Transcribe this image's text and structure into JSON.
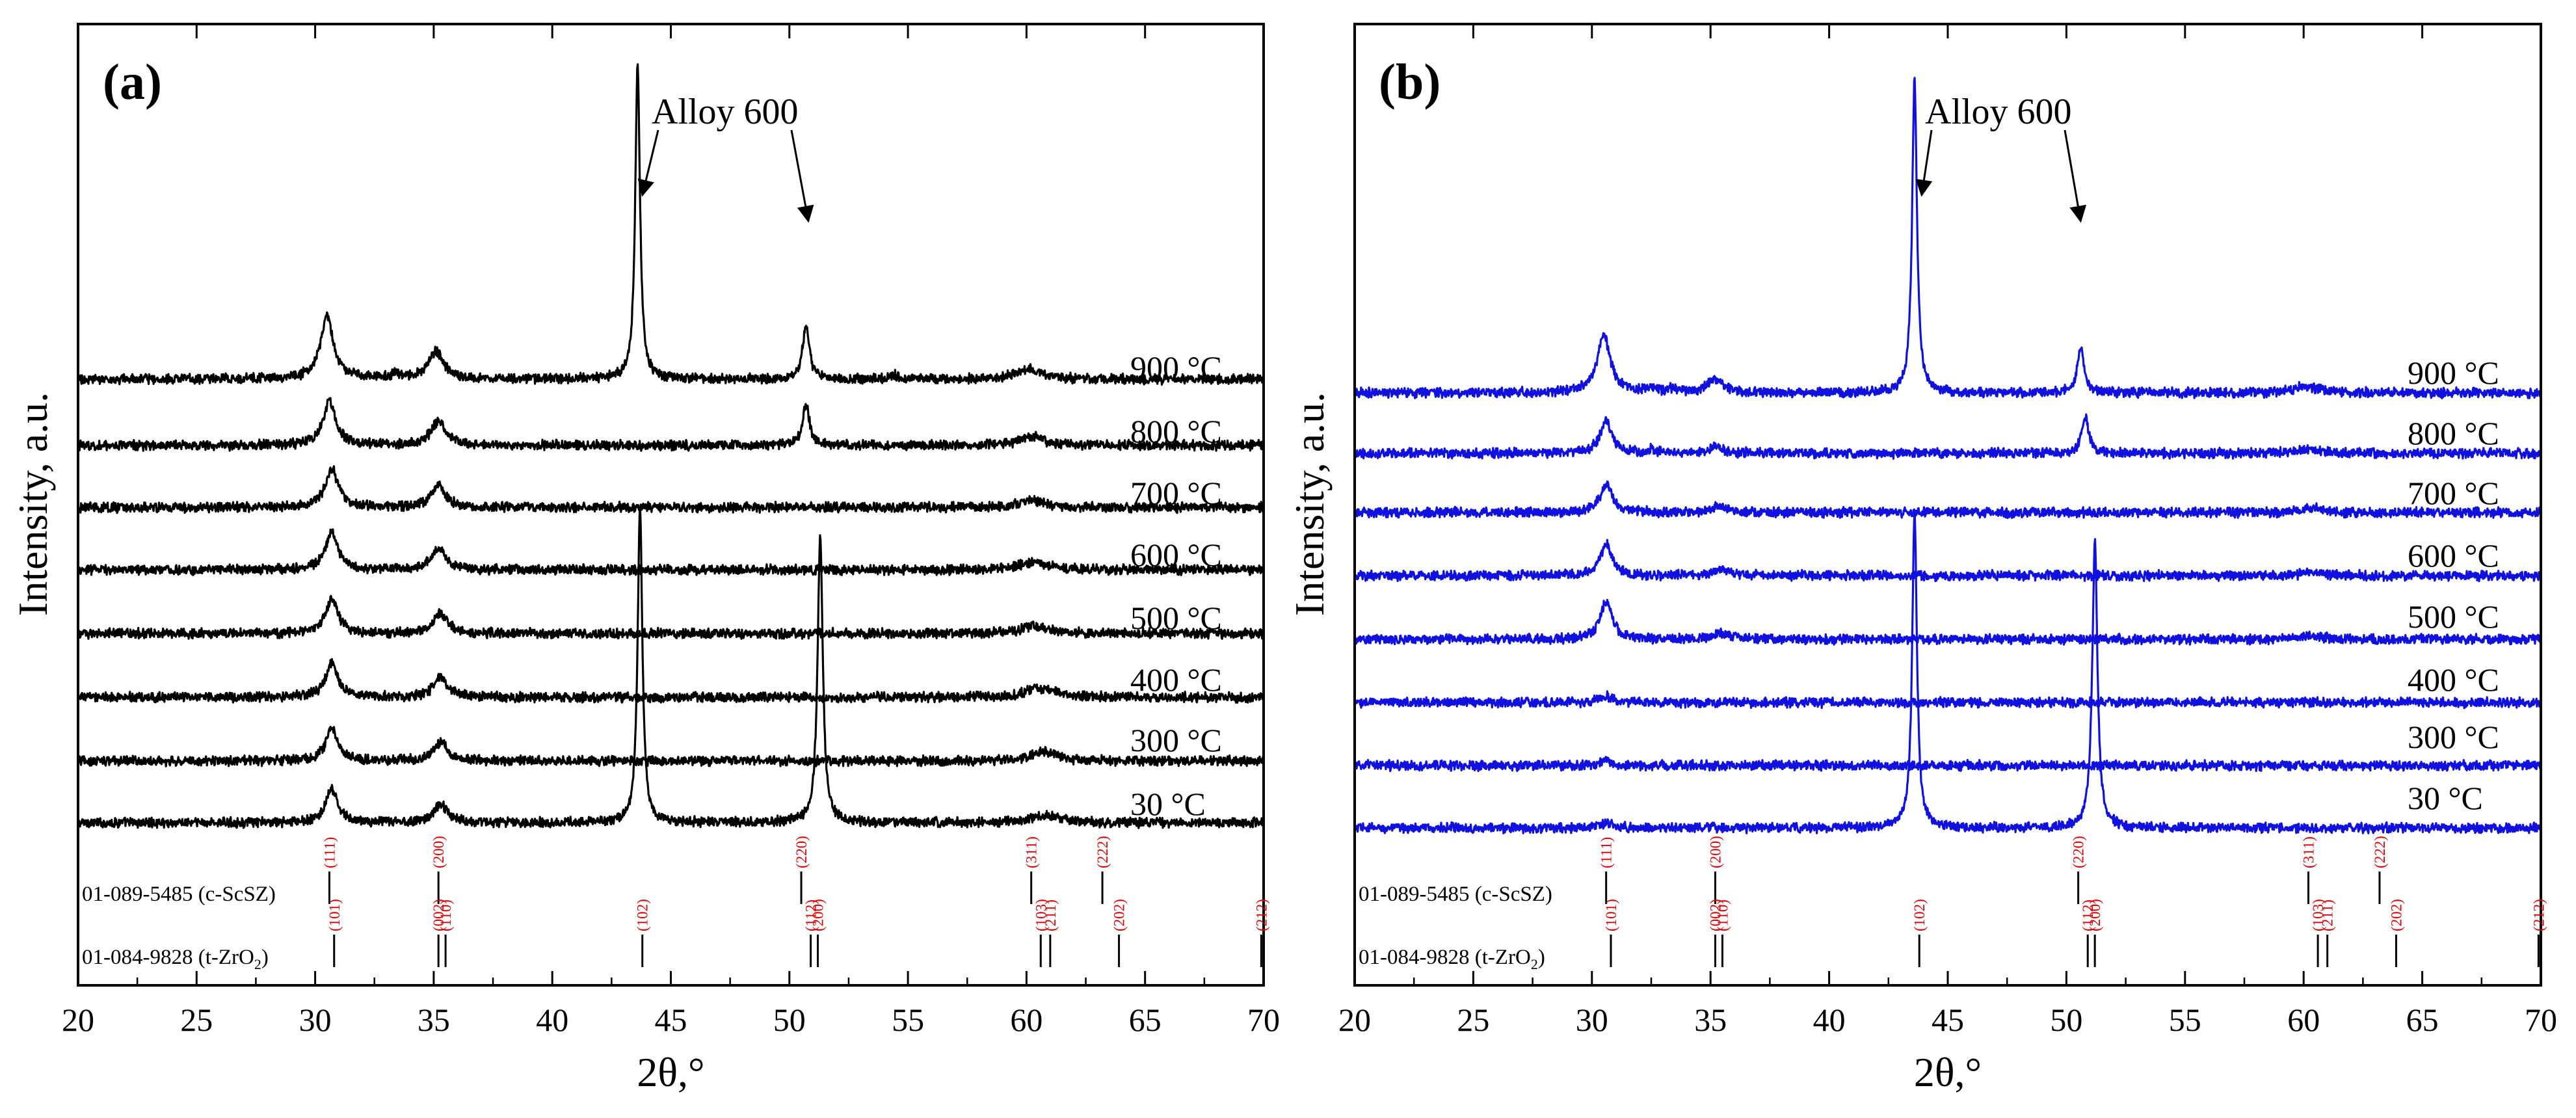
{
  "chart_data": [
    {
      "type": "line",
      "panel": "(a)",
      "color": "#000000",
      "xlabel": "2θ,°",
      "ylabel": "Intensity, a.u.",
      "xlim": [
        20,
        70
      ],
      "xticks": [
        20,
        25,
        30,
        35,
        40,
        45,
        50,
        55,
        60,
        65,
        70
      ],
      "annotation": "Alloy 600",
      "annotation_targets": [
        43.8,
        50.8
      ],
      "series": [
        {
          "name": "30 °C",
          "peaks": [
            [
              30.7,
              2.3,
              0.3
            ],
            [
              35.3,
              1.3,
              0.35
            ],
            [
              43.7,
              22.0,
              0.12
            ],
            [
              51.3,
              20.0,
              0.13
            ],
            [
              60.6,
              0.35,
              0.6
            ],
            [
              61.1,
              0.25,
              0.5
            ]
          ]
        },
        {
          "name": "300 °C",
          "peaks": [
            [
              30.7,
              2.3,
              0.3
            ],
            [
              35.3,
              1.3,
              0.35
            ],
            [
              60.6,
              0.45,
              0.6
            ],
            [
              61.0,
              0.3,
              0.5
            ]
          ]
        },
        {
          "name": "400 °C",
          "peaks": [
            [
              30.7,
              2.4,
              0.3
            ],
            [
              35.3,
              1.35,
              0.35
            ],
            [
              60.4,
              0.5,
              0.55
            ],
            [
              61.0,
              0.3,
              0.5
            ]
          ]
        },
        {
          "name": "500 °C",
          "peaks": [
            [
              30.7,
              2.5,
              0.3
            ],
            [
              35.3,
              1.4,
              0.35
            ],
            [
              60.3,
              0.55,
              0.65
            ]
          ]
        },
        {
          "name": "600 °C",
          "peaks": [
            [
              30.7,
              2.6,
              0.32
            ],
            [
              35.2,
              1.45,
              0.35
            ],
            [
              60.3,
              0.55,
              0.65
            ]
          ]
        },
        {
          "name": "700 °C",
          "peaks": [
            [
              30.7,
              2.7,
              0.32
            ],
            [
              35.2,
              1.5,
              0.36
            ],
            [
              60.2,
              0.5,
              0.6
            ]
          ]
        },
        {
          "name": "800 °C",
          "peaks": [
            [
              30.6,
              3.1,
              0.33
            ],
            [
              35.2,
              1.7,
              0.38
            ],
            [
              50.7,
              2.8,
              0.18
            ],
            [
              60.2,
              0.65,
              0.6
            ]
          ]
        },
        {
          "name": "900 °C",
          "peaks": [
            [
              30.5,
              4.4,
              0.33
            ],
            [
              33.4,
              0.35,
              0.2
            ],
            [
              35.1,
              1.9,
              0.38
            ],
            [
              43.6,
              22.0,
              0.12
            ],
            [
              50.7,
              3.7,
              0.17
            ],
            [
              54.4,
              0.3,
              0.2
            ],
            [
              60.1,
              0.75,
              0.6
            ]
          ]
        }
      ]
    },
    {
      "type": "line",
      "panel": "(b)",
      "color": "#1010e0",
      "xlabel": "2θ,°",
      "ylabel": "Intensity, a.u.",
      "xlim": [
        20,
        70
      ],
      "xticks": [
        20,
        25,
        30,
        35,
        40,
        45,
        50,
        55,
        60,
        65,
        70
      ],
      "annotation": "Alloy 600",
      "annotation_targets": [
        43.9,
        50.6
      ],
      "series": [
        {
          "name": "30 °C",
          "peaks": [
            [
              30.6,
              0.35,
              0.3
            ],
            [
              43.6,
              22.0,
              0.12
            ],
            [
              51.2,
              20.0,
              0.13
            ]
          ]
        },
        {
          "name": "300 °C",
          "peaks": [
            [
              30.6,
              0.35,
              0.3
            ]
          ]
        },
        {
          "name": "400 °C",
          "peaks": [
            [
              30.6,
              0.45,
              0.3
            ]
          ]
        },
        {
          "name": "500 °C",
          "peaks": [
            [
              30.6,
              2.6,
              0.3
            ],
            [
              35.5,
              0.45,
              0.4
            ],
            [
              60.4,
              0.25,
              0.5
            ]
          ]
        },
        {
          "name": "600 °C",
          "peaks": [
            [
              30.6,
              2.2,
              0.3
            ],
            [
              35.5,
              0.4,
              0.4
            ],
            [
              60.4,
              0.25,
              0.5
            ]
          ]
        },
        {
          "name": "700 °C",
          "peaks": [
            [
              30.6,
              2.0,
              0.3
            ],
            [
              35.4,
              0.45,
              0.4
            ],
            [
              60.4,
              0.3,
              0.5
            ]
          ]
        },
        {
          "name": "800 °C",
          "peaks": [
            [
              30.6,
              2.3,
              0.3
            ],
            [
              32.5,
              0.25,
              0.2
            ],
            [
              35.2,
              0.45,
              0.4
            ],
            [
              50.8,
              2.5,
              0.18
            ],
            [
              60.2,
              0.35,
              0.5
            ]
          ]
        },
        {
          "name": "900 °C",
          "peaks": [
            [
              30.5,
              4.0,
              0.33
            ],
            [
              32.5,
              0.3,
              0.2
            ],
            [
              33.3,
              0.3,
              0.2
            ],
            [
              35.2,
              0.95,
              0.4
            ],
            [
              43.6,
              22.0,
              0.12
            ],
            [
              50.6,
              3.2,
              0.17
            ],
            [
              60.1,
              0.5,
              0.55
            ]
          ]
        }
      ]
    }
  ],
  "reference_patterns": [
    {
      "name": "01-089-5485 (c-ScSZ)",
      "reflections": [
        {
          "two_theta": 30.6,
          "hkl": "(111)"
        },
        {
          "two_theta": 35.2,
          "hkl": "(200)"
        },
        {
          "two_theta": 50.5,
          "hkl": "(220)"
        },
        {
          "two_theta": 60.2,
          "hkl": "(311)"
        },
        {
          "two_theta": 63.2,
          "hkl": "(222)"
        }
      ]
    },
    {
      "name": "01-084-9828 (t-ZrO2)",
      "name_prefix": "01-084-9828 (t-ZrO",
      "name_sub": "2",
      "name_suffix": ")",
      "reflections": [
        {
          "two_theta": 30.8,
          "hkl": "(101)"
        },
        {
          "two_theta": 35.2,
          "hkl": "(002)"
        },
        {
          "two_theta": 35.5,
          "hkl": "(110)"
        },
        {
          "two_theta": 43.8,
          "hkl": "(102)"
        },
        {
          "two_theta": 50.9,
          "hkl": "(112)"
        },
        {
          "two_theta": 51.2,
          "hkl": "(200)"
        },
        {
          "two_theta": 60.6,
          "hkl": "(103)"
        },
        {
          "two_theta": 61.0,
          "hkl": "(211)"
        },
        {
          "two_theta": 63.9,
          "hkl": "(202)"
        },
        {
          "two_theta": 69.9,
          "hkl": "(212)"
        }
      ]
    }
  ]
}
